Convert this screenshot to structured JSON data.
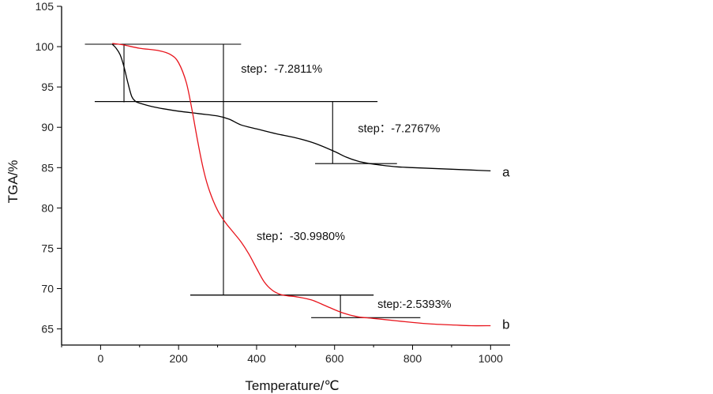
{
  "chart_data": {
    "type": "line",
    "title": "",
    "xlabel": "Temperature/℃",
    "ylabel": "TGA/%",
    "xlim": [
      -100,
      1050
    ],
    "ylim": [
      63,
      105
    ],
    "x_ticks": [
      0,
      200,
      400,
      600,
      800,
      1000
    ],
    "y_ticks": [
      65,
      70,
      75,
      80,
      85,
      90,
      95,
      100,
      105
    ],
    "grid": false,
    "legend": "none",
    "series": [
      {
        "name": "a",
        "color": "#000000",
        "x": [
          30,
          40,
          50,
          60,
          70,
          80,
          90,
          100,
          130,
          160,
          200,
          250,
          300,
          330,
          360,
          400,
          450,
          500,
          550,
          600,
          630,
          660,
          690,
          720,
          760,
          800,
          850,
          900,
          950,
          1000
        ],
        "y": [
          100.3,
          99.8,
          99.0,
          97.5,
          95.5,
          93.8,
          93.2,
          93.0,
          92.6,
          92.3,
          92.0,
          91.7,
          91.4,
          91.0,
          90.3,
          89.8,
          89.2,
          88.7,
          88.0,
          87.0,
          86.3,
          85.8,
          85.5,
          85.3,
          85.1,
          85.0,
          84.9,
          84.8,
          84.7,
          84.6
        ]
      },
      {
        "name": "b",
        "color": "#e8141c",
        "x": [
          30,
          60,
          100,
          150,
          180,
          200,
          220,
          235,
          250,
          265,
          280,
          300,
          320,
          340,
          360,
          380,
          400,
          420,
          440,
          460,
          480,
          500,
          540,
          580,
          620,
          660,
          700,
          760,
          800,
          850,
          900,
          950,
          1000
        ],
        "y": [
          100.4,
          100.2,
          99.8,
          99.5,
          99.0,
          98.0,
          95.5,
          92.0,
          88.0,
          84.5,
          82.0,
          79.7,
          78.2,
          77.0,
          75.8,
          74.3,
          72.5,
          70.8,
          69.8,
          69.3,
          69.1,
          69.0,
          68.6,
          67.8,
          67.0,
          66.5,
          66.3,
          66.0,
          65.8,
          65.6,
          65.5,
          65.4,
          65.4
        ]
      }
    ],
    "annotations": [
      {
        "text": "step：-7.2811%",
        "x": 360,
        "y": 96.8
      },
      {
        "text": "step：-7.2767%",
        "x": 660,
        "y": 89.4
      },
      {
        "text": "step：-30.9980%",
        "x": 400,
        "y": 76.0
      },
      {
        "text": "step:-2.5393%",
        "x": 710,
        "y": 67.6
      }
    ],
    "step_markers": [
      {
        "h1": {
          "y": 100.3,
          "x0": -40,
          "x1": 360
        },
        "h2": {
          "y": 93.2,
          "x0": -15,
          "x1": 710
        },
        "v": {
          "x": 60,
          "y0": 93.1,
          "y1": 100.3
        }
      },
      {
        "h1": {
          "y": 93.2,
          "x0": -15,
          "x1": 710
        },
        "h2": {
          "y": 85.5,
          "x0": 550,
          "x1": 760
        },
        "v": {
          "x": 595,
          "y0": 85.5,
          "y1": 93.2
        }
      },
      {
        "h1": {
          "y": 100.3,
          "x0": -40,
          "x1": 360
        },
        "h2": {
          "y": 69.2,
          "x0": 230,
          "x1": 700
        },
        "v": {
          "x": 315,
          "y0": 69.2,
          "y1": 100.3
        }
      },
      {
        "h1": {
          "y": 69.2,
          "x0": 230,
          "x1": 700
        },
        "h2": {
          "y": 66.4,
          "x0": 540,
          "x1": 820
        },
        "v": {
          "x": 615,
          "y0": 66.4,
          "y1": 69.2
        }
      }
    ],
    "curve_labels": [
      {
        "text": "a",
        "x": 1030,
        "y": 84.5
      },
      {
        "text": "b",
        "x": 1030,
        "y": 65.6
      }
    ]
  }
}
